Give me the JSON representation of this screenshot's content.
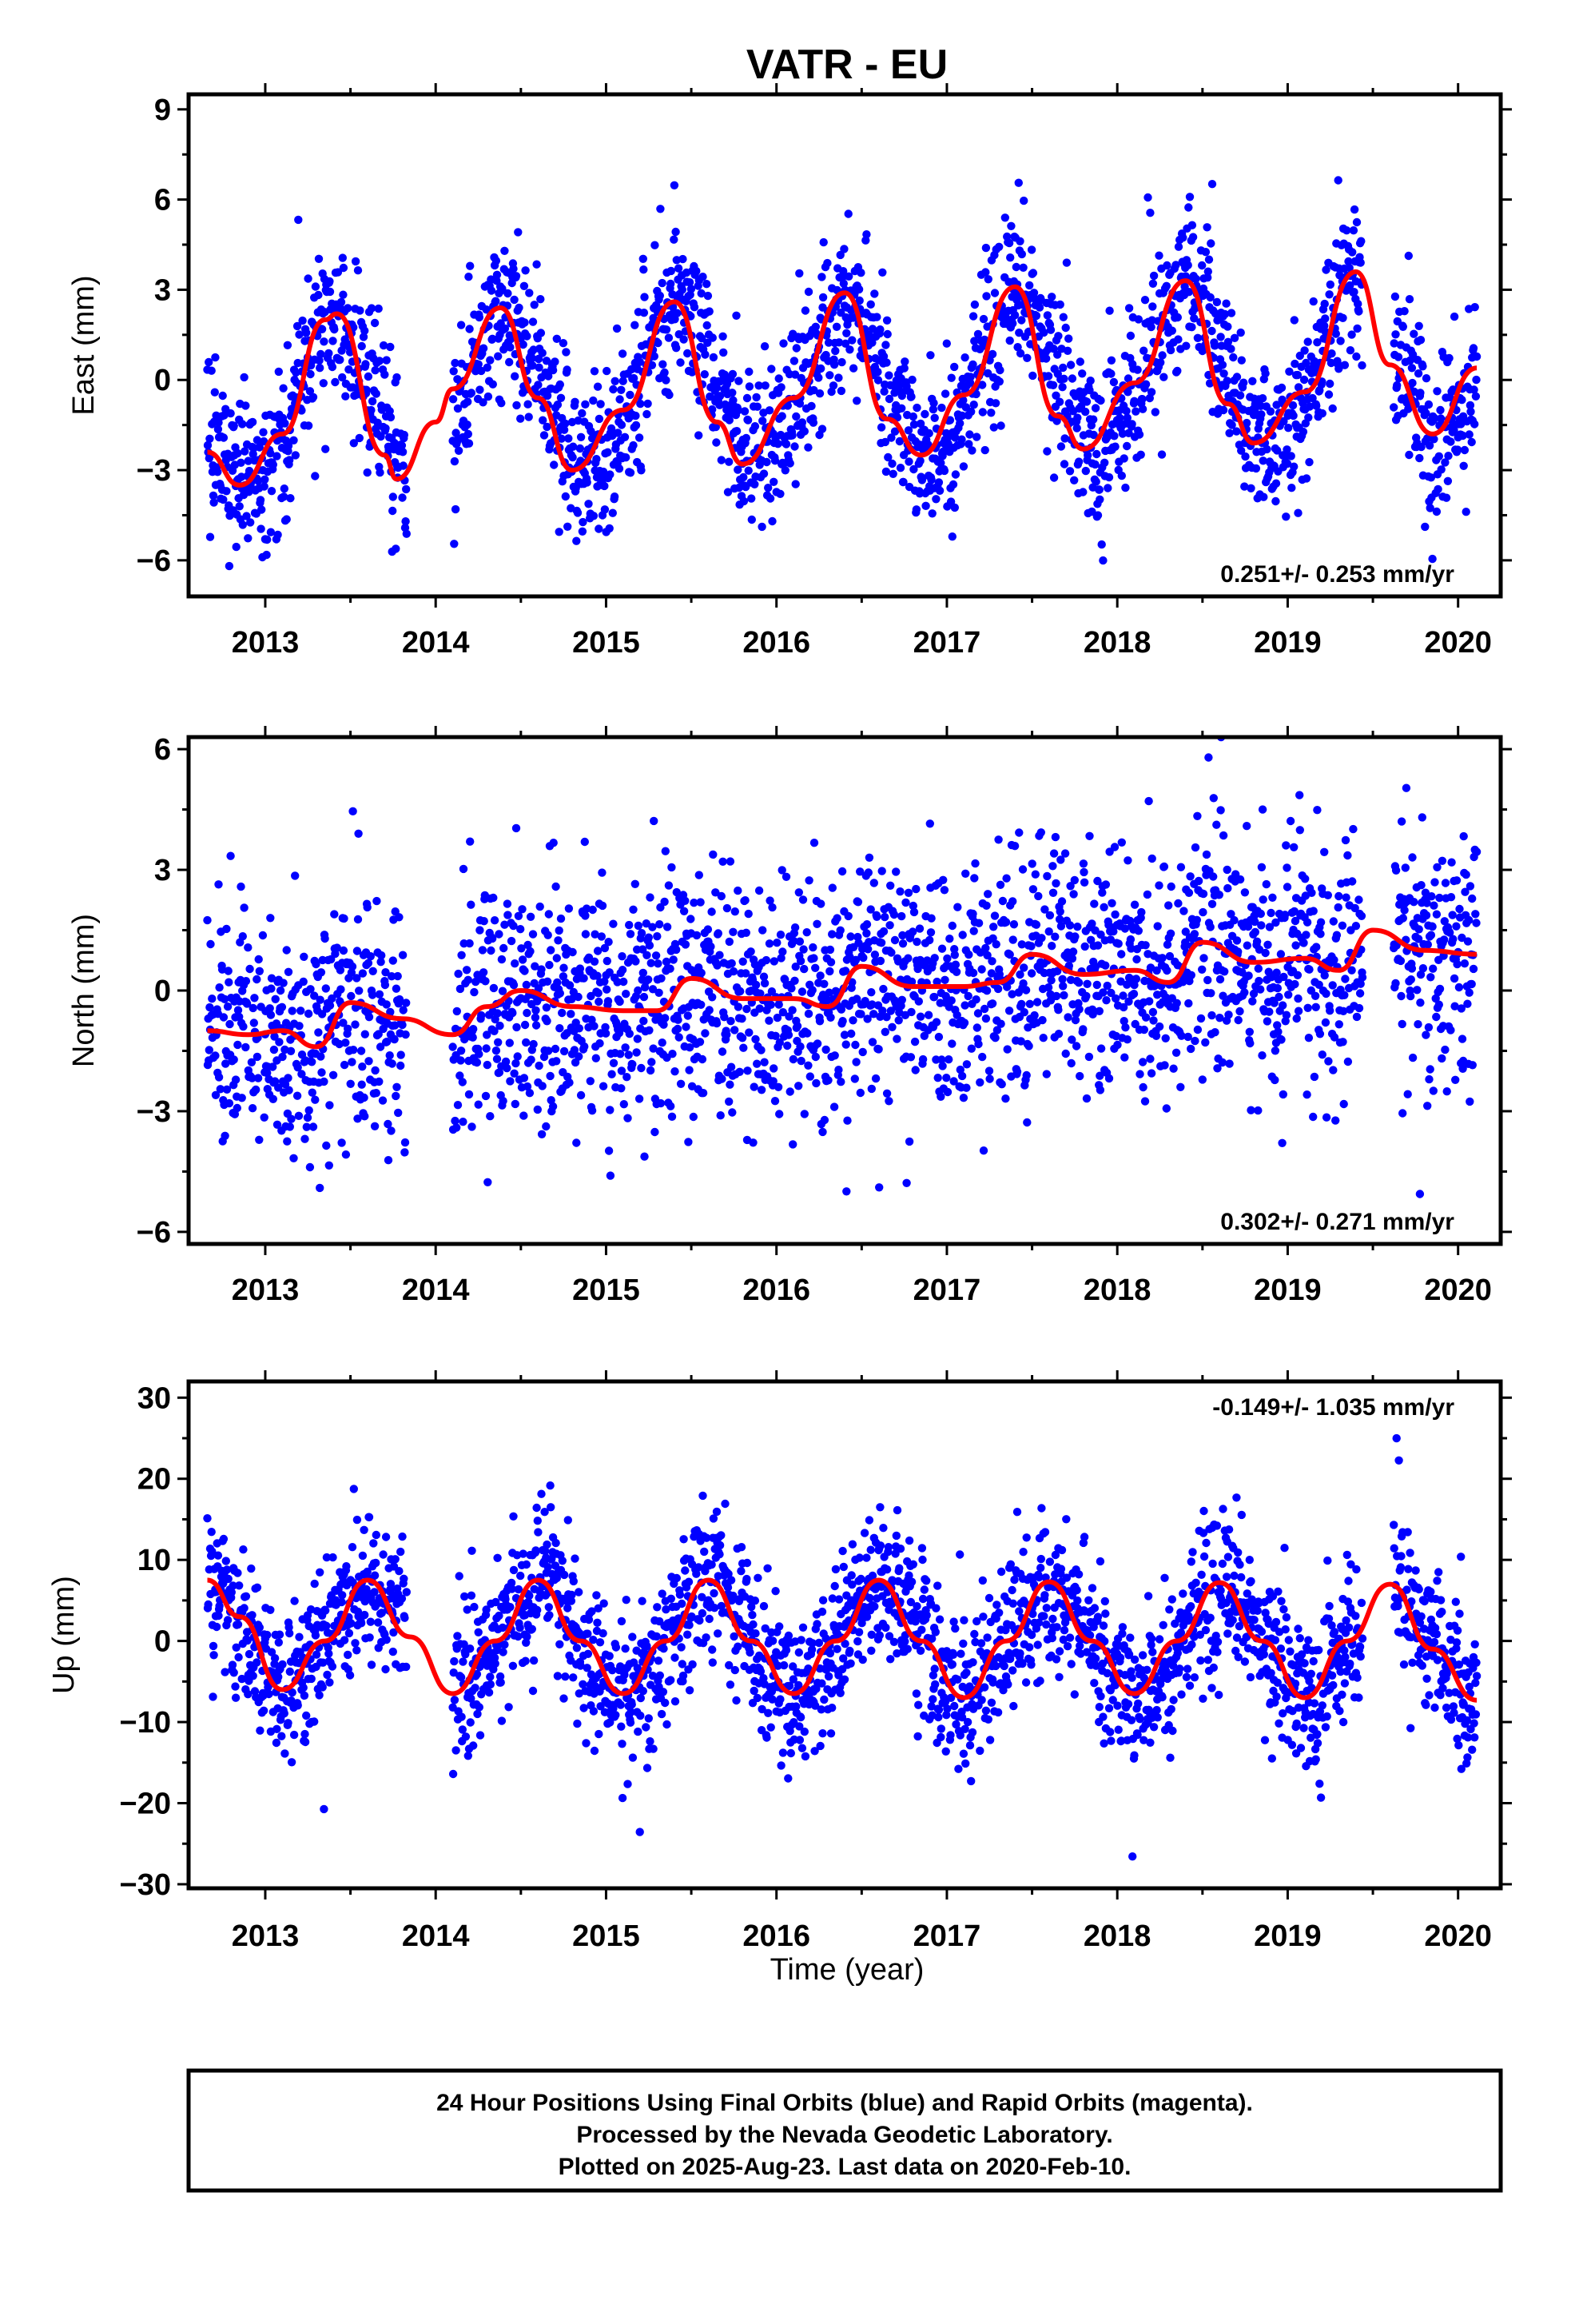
{
  "page_title": "VATR - EU",
  "footer": {
    "line1": "24 Hour Positions Using Final Orbits (blue) and Rapid Orbits (magenta).",
    "line2": "Processed by the Nevada Geodetic Laboratory.",
    "line3": "Plotted on 2025-Aug-23. Last data on 2020-Feb-10."
  },
  "colors": {
    "points": "#0000ff",
    "fit": "#ff0000",
    "frame": "#000000"
  },
  "chart_data": [
    {
      "type": "scatter",
      "name": "east",
      "ylabel": "East (mm)",
      "xlabel": "",
      "xlim": [
        2012.55,
        2020.25
      ],
      "ylim": [
        -7.2,
        9.5
      ],
      "xticks": [
        "2013",
        "2014",
        "2015",
        "2016",
        "2017",
        "2018",
        "2019",
        "2020"
      ],
      "yticks": [
        "9",
        "6",
        "3",
        "0",
        "−3",
        "−6"
      ],
      "ytick_values": [
        9,
        6,
        3,
        0,
        -3,
        -6
      ],
      "rate_label": "0.251+/- 0.253 mm/yr",
      "rate_position": "bottom-right",
      "data_start": 2012.66,
      "data_end": 2020.11,
      "gaps": [
        [
          2013.83,
          2014.1
        ],
        [
          2019.44,
          2019.62
        ]
      ],
      "trend_mm_per_yr": 0.251,
      "annual_amplitude_mm": 2.9,
      "annual_peak_phase_yr": 0.42,
      "scatter_sigma_mm": 1.3,
      "fit_curve": {
        "x": [
          2012.66,
          2012.85,
          2013.1,
          2013.35,
          2013.42,
          2013.7,
          2013.77,
          2014.0,
          2014.1,
          2014.38,
          2014.6,
          2014.8,
          2015.1,
          2015.4,
          2015.65,
          2015.8,
          2016.1,
          2016.4,
          2016.65,
          2016.85,
          2017.1,
          2017.4,
          2017.65,
          2017.8,
          2018.1,
          2018.4,
          2018.65,
          2018.8,
          2019.1,
          2019.4,
          2019.6,
          2019.85,
          2020.11
        ],
        "y": [
          -2.4,
          -3.5,
          -1.8,
          2.0,
          2.2,
          -2.5,
          -3.3,
          -1.4,
          -0.3,
          2.4,
          -0.6,
          -3.0,
          -1.0,
          2.6,
          -1.4,
          -2.8,
          -0.6,
          2.9,
          -1.3,
          -2.5,
          -0.5,
          3.1,
          -1.2,
          -2.3,
          -0.1,
          3.3,
          -0.8,
          -2.1,
          -0.4,
          3.6,
          0.5,
          -1.8,
          0.4
        ]
      }
    },
    {
      "type": "scatter",
      "name": "north",
      "ylabel": "North (mm)",
      "xlabel": "",
      "xlim": [
        2012.55,
        2020.25
      ],
      "ylim": [
        -6.3,
        6.3
      ],
      "xticks": [
        "2013",
        "2014",
        "2015",
        "2016",
        "2017",
        "2018",
        "2019",
        "2020"
      ],
      "yticks": [
        "6",
        "3",
        "0",
        "−3",
        "−6"
      ],
      "ytick_values": [
        6,
        3,
        0,
        -3,
        -6
      ],
      "rate_label": "0.302+/- 0.271 mm/yr",
      "rate_position": "bottom-right",
      "data_start": 2012.66,
      "data_end": 2020.11,
      "gaps": [
        [
          2013.83,
          2014.1
        ],
        [
          2019.44,
          2019.62
        ]
      ],
      "trend_mm_per_yr": 0.302,
      "annual_amplitude_mm": 0.3,
      "annual_peak_phase_yr": 0.5,
      "scatter_sigma_mm": 1.5,
      "fit_curve": {
        "x": [
          2012.66,
          2012.9,
          2013.1,
          2013.3,
          2013.5,
          2013.8,
          2014.1,
          2014.3,
          2014.5,
          2014.8,
          2015.1,
          2015.3,
          2015.5,
          2015.8,
          2016.1,
          2016.3,
          2016.5,
          2016.8,
          2017.1,
          2017.3,
          2017.5,
          2017.8,
          2018.1,
          2018.3,
          2018.5,
          2018.8,
          2019.1,
          2019.3,
          2019.5,
          2019.8,
          2020.11
        ],
        "y": [
          -1.0,
          -1.1,
          -1.0,
          -1.4,
          -0.3,
          -0.7,
          -1.1,
          -0.4,
          0.0,
          -0.4,
          -0.5,
          -0.5,
          0.3,
          -0.2,
          -0.2,
          -0.4,
          0.6,
          0.1,
          0.1,
          0.2,
          0.9,
          0.4,
          0.5,
          0.2,
          1.2,
          0.7,
          0.8,
          0.5,
          1.5,
          1.0,
          0.9
        ]
      }
    },
    {
      "type": "scatter",
      "name": "up",
      "ylabel": "Up (mm)",
      "xlabel": "Time (year)",
      "xlim": [
        2012.55,
        2020.25
      ],
      "ylim": [
        -30.5,
        32
      ],
      "xticks": [
        "2013",
        "2014",
        "2015",
        "2016",
        "2017",
        "2018",
        "2019",
        "2020"
      ],
      "yticks": [
        "30",
        "20",
        "10",
        "0",
        "−10",
        "−20",
        "−30"
      ],
      "ytick_values": [
        30,
        20,
        10,
        0,
        -10,
        -20,
        -30
      ],
      "rate_label": "-0.149+/- 1.035 mm/yr",
      "rate_position": "top-right",
      "data_start": 2012.66,
      "data_end": 2020.11,
      "gaps": [
        [
          2013.83,
          2014.1
        ],
        [
          2019.44,
          2019.62
        ]
      ],
      "trend_mm_per_yr": -0.149,
      "annual_amplitude_mm": 7.2,
      "annual_peak_phase_yr": 0.62,
      "scatter_sigma_mm": 4.5,
      "fit_curve": {
        "x": [
          2012.66,
          2012.85,
          2013.1,
          2013.35,
          2013.6,
          2013.85,
          2014.1,
          2014.35,
          2014.6,
          2014.85,
          2015.1,
          2015.35,
          2015.6,
          2015.85,
          2016.1,
          2016.35,
          2016.6,
          2016.85,
          2017.1,
          2017.35,
          2017.6,
          2017.85,
          2018.1,
          2018.35,
          2018.6,
          2018.85,
          2019.1,
          2019.35,
          2019.6,
          2019.85,
          2020.11
        ],
        "y": [
          7.5,
          3.0,
          -6.0,
          0.0,
          7.5,
          0.5,
          -6.5,
          0.0,
          7.5,
          0.0,
          -6.5,
          0.0,
          7.5,
          0.0,
          -6.5,
          0.0,
          7.5,
          0.0,
          -7.0,
          0.0,
          7.3,
          0.0,
          -6.5,
          0.0,
          7.2,
          0.0,
          -7.0,
          0.0,
          7.0,
          -1.0,
          -7.3
        ]
      }
    }
  ]
}
